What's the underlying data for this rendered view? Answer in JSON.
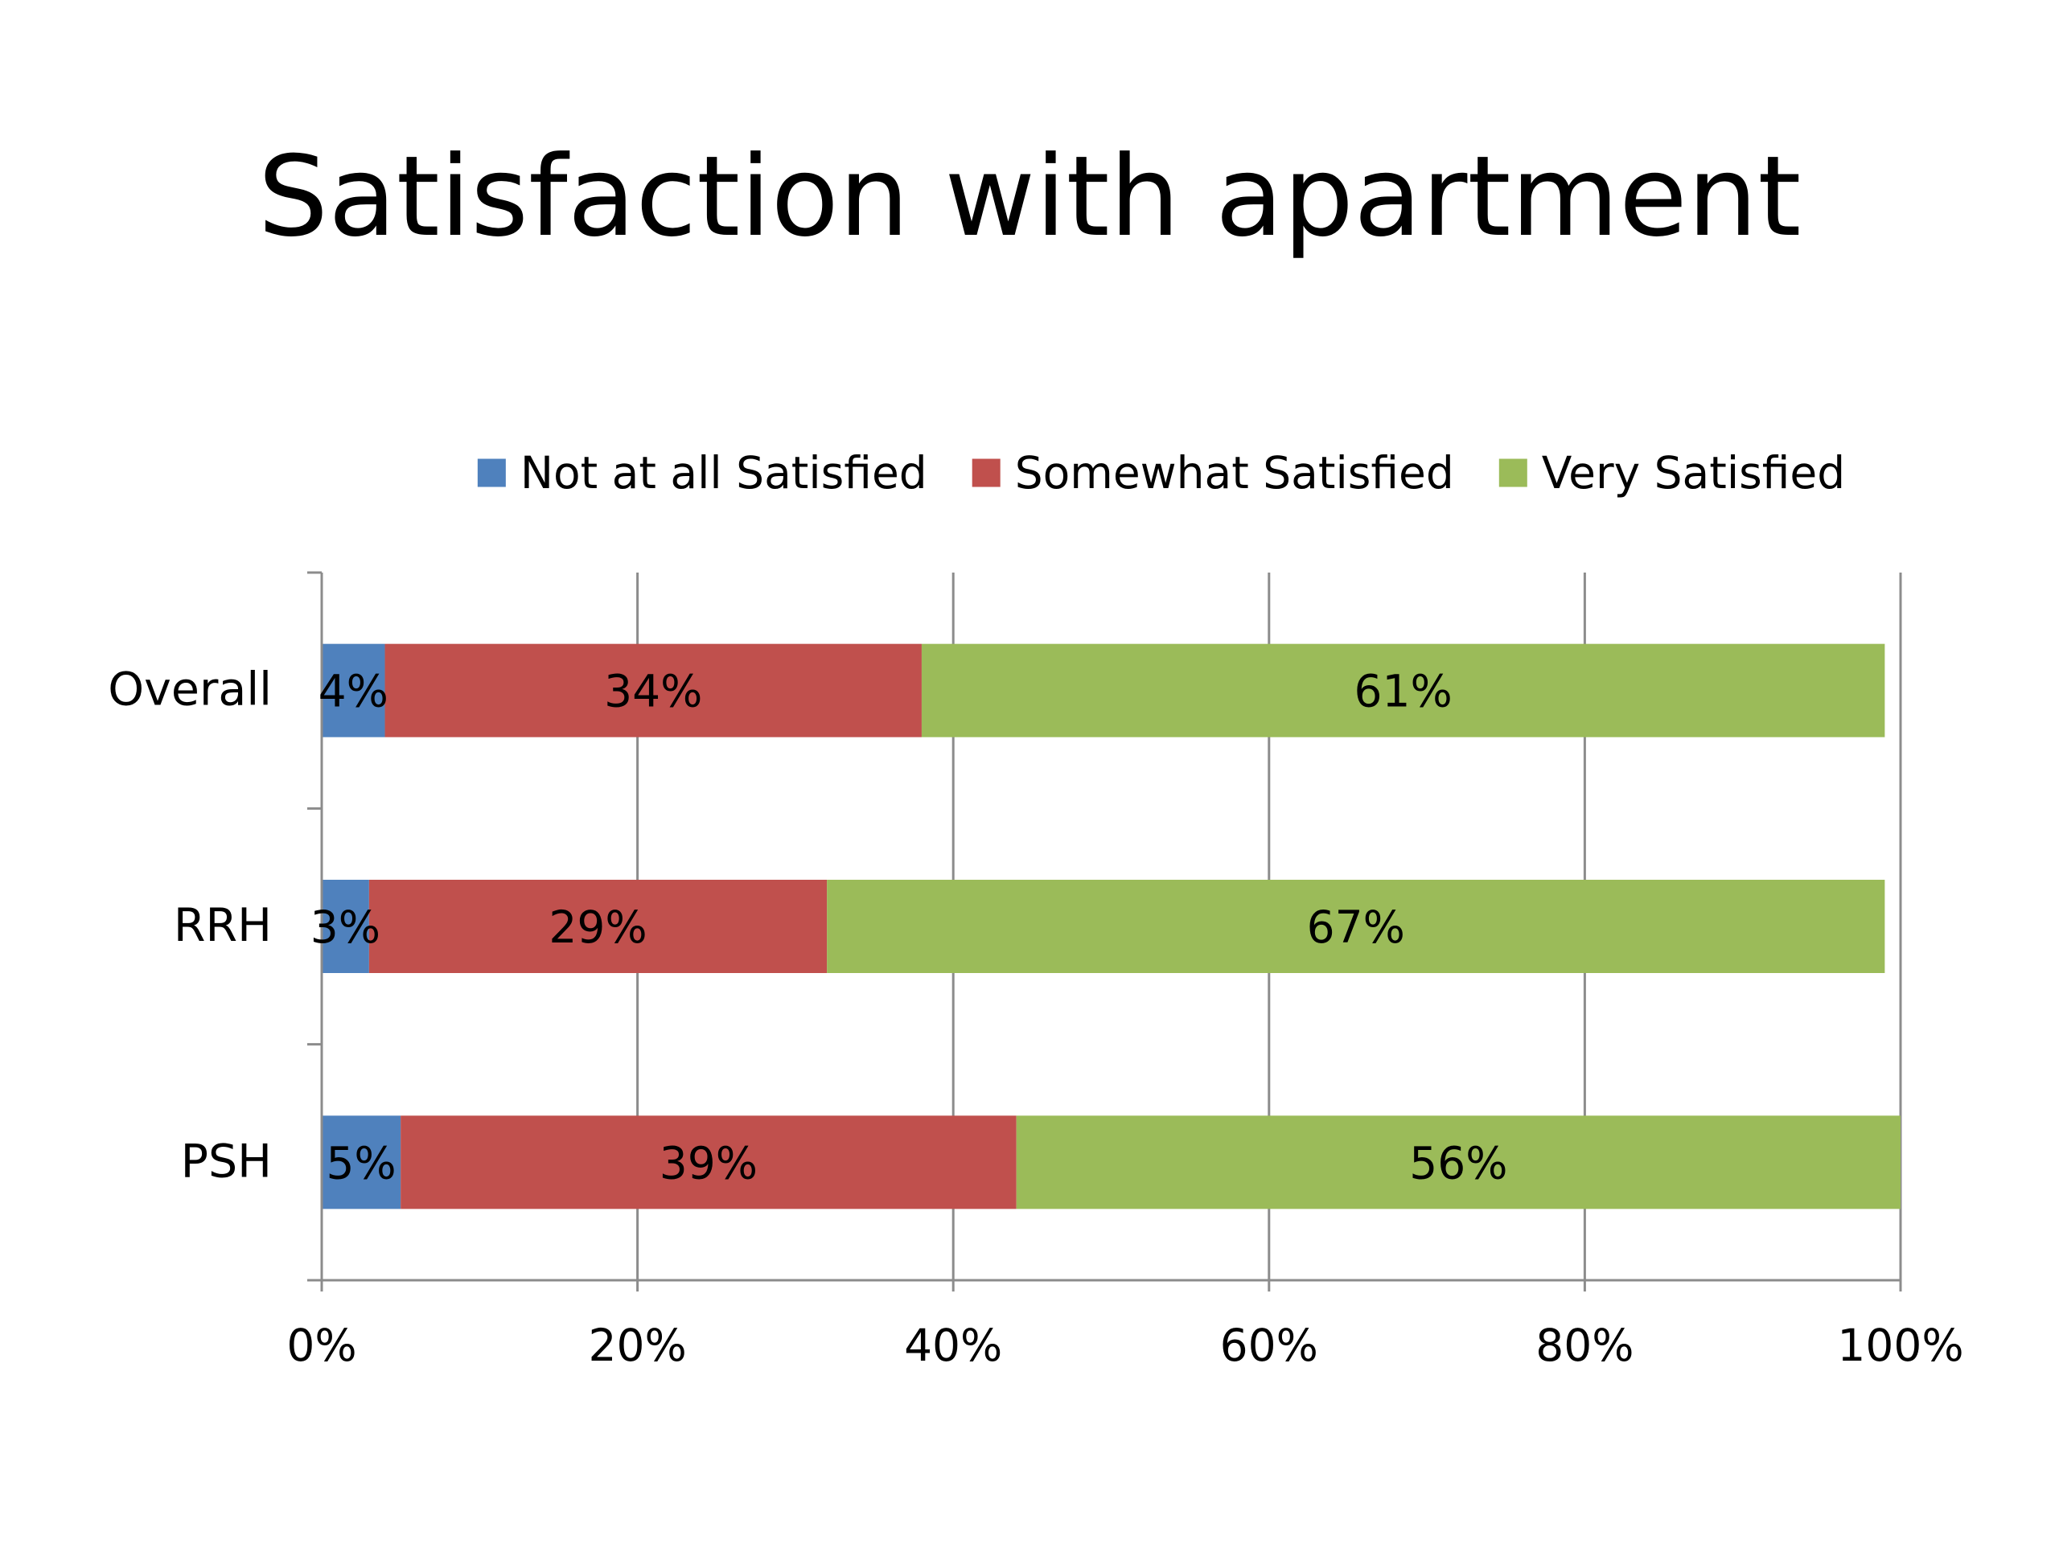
{
  "chart_data": {
    "type": "bar",
    "orientation": "horizontal",
    "stacked": true,
    "title": "Satisfaction with apartment",
    "xlabel": "",
    "ylabel": "",
    "categories": [
      "Overall",
      "RRH",
      "PSH"
    ],
    "series": [
      {
        "name": "Not at all Satisfied",
        "color": "#4f81bd",
        "values": [
          4,
          3,
          5
        ],
        "labels": [
          "4%",
          "3%",
          "5%"
        ]
      },
      {
        "name": "Somewhat Satisfied",
        "color": "#c0504d",
        "values": [
          34,
          29,
          39
        ],
        "labels": [
          "34%",
          "29%",
          "39%"
        ]
      },
      {
        "name": "Very Satisfied",
        "color": "#9bbb59",
        "values": [
          61,
          67,
          56
        ],
        "labels": [
          "61%",
          "67%",
          "56%"
        ]
      }
    ],
    "xlim": [
      0,
      100
    ],
    "xticks": [
      0,
      20,
      40,
      60,
      80,
      100
    ],
    "xtick_labels": [
      "0%",
      "20%",
      "40%",
      "60%",
      "80%",
      "100%"
    ],
    "grid": true,
    "legend_position": "top"
  }
}
